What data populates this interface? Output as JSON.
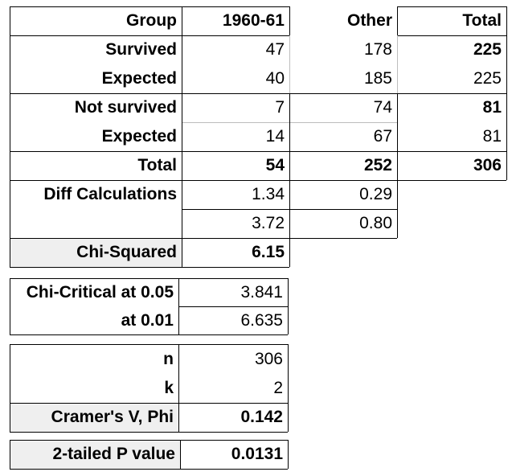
{
  "main_table": {
    "header": [
      "Group",
      "1960-61",
      "Other",
      "Total"
    ],
    "rows": [
      {
        "label": "Survived",
        "c1": "47",
        "c2": "178",
        "total": "225"
      },
      {
        "label": "Expected",
        "c1": "40",
        "c2": "185",
        "total": "225"
      },
      {
        "label": "Not survived",
        "c1": "7",
        "c2": "74",
        "total": "81"
      },
      {
        "label": "Expected",
        "c1": "14",
        "c2": "67",
        "total": "81"
      },
      {
        "label": "Total",
        "c1": "54",
        "c2": "252",
        "total": "306"
      }
    ],
    "diff": {
      "label": "Diff Calculations",
      "row1": [
        "1.34",
        "0.29"
      ],
      "row2": [
        "3.72",
        "0.80"
      ]
    },
    "chi_squared": {
      "label": "Chi-Squared",
      "value": "6.15"
    }
  },
  "critical": {
    "rows": [
      {
        "label": "Chi-Critical at 0.05",
        "value": "3.841"
      },
      {
        "label": "at 0.01",
        "value": "6.635"
      }
    ]
  },
  "stats": {
    "rows": [
      {
        "label": "n",
        "value": "306"
      },
      {
        "label": "k",
        "value": "2"
      },
      {
        "label": "Cramer's V,  Phi",
        "value": "0.142"
      }
    ]
  },
  "pvalue": {
    "label": "2-tailed P value",
    "value": "0.0131"
  }
}
